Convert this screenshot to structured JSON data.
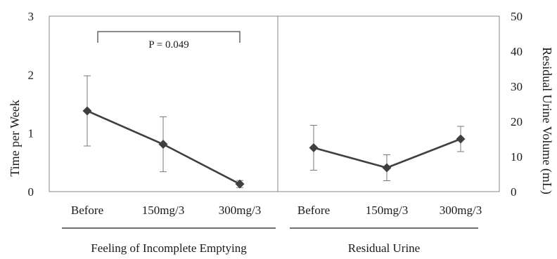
{
  "chart_data": {
    "type": "line",
    "left_axis": {
      "label": "Time per Week",
      "ylim": [
        0,
        3
      ],
      "ticks": [
        "0",
        "1",
        "2",
        "3"
      ]
    },
    "right_axis": {
      "label": "Residual Urine Volume (mL)",
      "ylim": [
        0,
        50
      ],
      "ticks": [
        "0",
        "10",
        "20",
        "30",
        "40",
        "50"
      ]
    },
    "categories": [
      "Before",
      "150mg/3",
      "300mg/3"
    ],
    "groups": [
      {
        "label": "Feeling of Incomplete Emptying",
        "axis": "left",
        "values": [
          1.38,
          0.81,
          0.13
        ],
        "error": [
          0.6,
          0.47,
          0.06
        ]
      },
      {
        "label": "Residual Urine",
        "axis": "right",
        "values": [
          12.5,
          6.8,
          15.0
        ],
        "error": [
          6.4,
          3.7,
          3.6
        ]
      }
    ],
    "annotations": [
      {
        "text": "P = 0.049",
        "group": 0,
        "from": 0,
        "to": 2
      }
    ],
    "grid": false,
    "colors": {
      "line": "#404040",
      "marker": "#404040",
      "error": "#7a7a7a",
      "frame": "#888888"
    }
  }
}
